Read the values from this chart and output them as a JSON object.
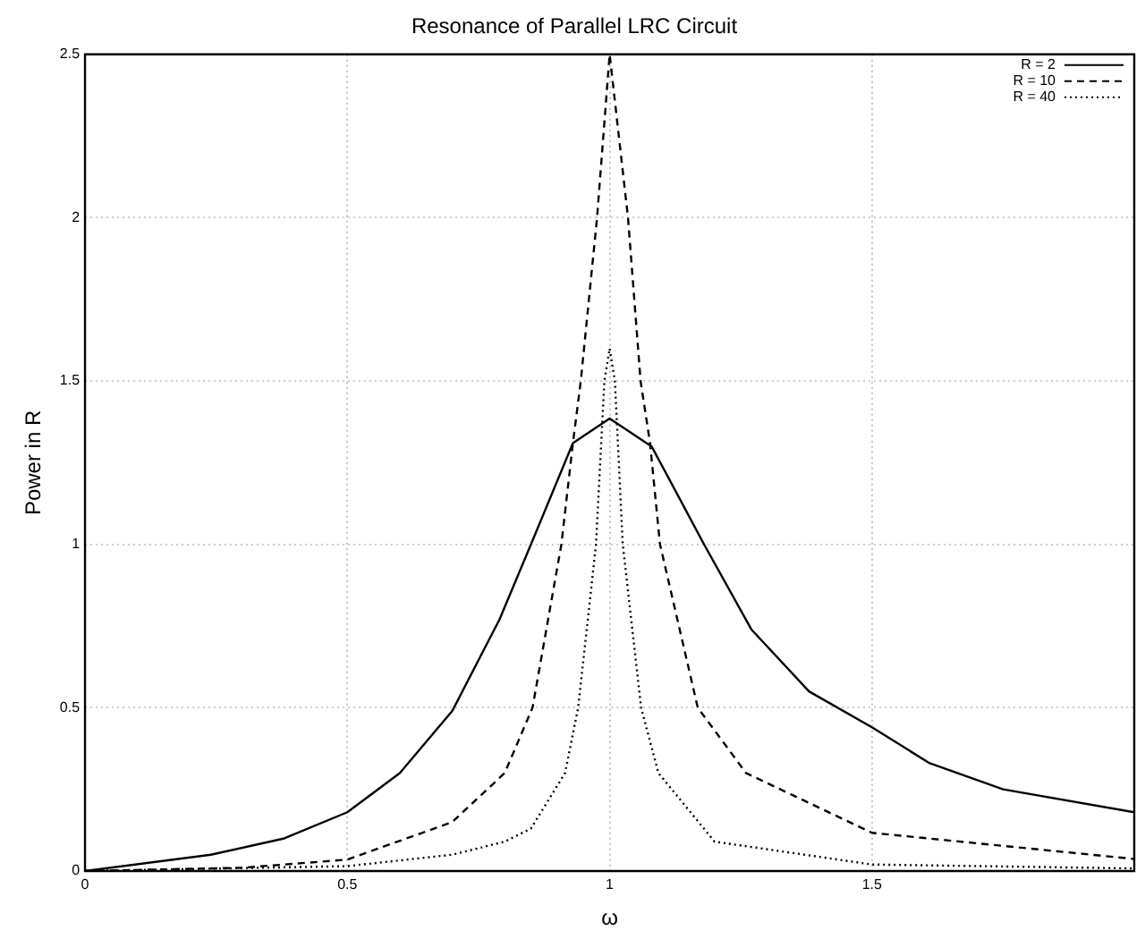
{
  "chart_data": {
    "type": "line",
    "title": "Resonance of Parallel LRC Circuit",
    "xlabel": "ω",
    "ylabel": "Power in R",
    "xlim": [
      0,
      2
    ],
    "xticks": [
      0,
      0.5,
      1,
      1.5
    ],
    "ylim": [
      0,
      2.5
    ],
    "yticks": [
      0,
      0.5,
      1,
      1.5,
      2,
      2.5
    ],
    "grid": true,
    "legend": "top right",
    "marker": "none",
    "series": [
      {
        "name": "R = 2",
        "color": "#000000",
        "line_style": "solid",
        "x": [
          0,
          0.24,
          0.38,
          0.5,
          0.6,
          0.7,
          0.79,
          0.85,
          0.93,
          1,
          1.08,
          1.18,
          1.27,
          1.38,
          1.5,
          1.61,
          1.75,
          2
        ],
        "values": [
          0,
          0.05,
          0.1,
          0.18,
          0.3,
          0.49,
          0.77,
          1,
          1.31,
          1.385,
          1.3,
          1,
          0.74,
          0.55,
          0.44,
          0.33,
          0.25,
          0.18
        ]
      },
      {
        "name": "R = 10",
        "color": "#000000",
        "line_style": "dashed",
        "x": [
          0,
          0.3,
          0.5,
          0.7,
          0.8,
          0.853,
          0.908,
          0.93,
          0.945,
          0.976,
          1,
          1.035,
          1.059,
          1.077,
          1.096,
          1.168,
          1.26,
          1.5,
          2
        ],
        "values": [
          0,
          0.01,
          0.035,
          0.15,
          0.3,
          0.5,
          1,
          1.31,
          1.5,
          2,
          2.5,
          2,
          1.5,
          1.31,
          1,
          0.5,
          0.3,
          0.117,
          0.037
        ]
      },
      {
        "name": "R = 40",
        "color": "#000000",
        "line_style": "dotted",
        "x": [
          0,
          0.5,
          0.7,
          0.8,
          0.85,
          0.915,
          0.94,
          0.974,
          0.99,
          1,
          1.01,
          1.025,
          1.06,
          1.093,
          1.2,
          1.5,
          2
        ],
        "values": [
          0,
          0.015,
          0.05,
          0.09,
          0.13,
          0.3,
          0.5,
          1,
          1.5,
          1.6,
          1.5,
          1,
          0.5,
          0.3,
          0.09,
          0.02,
          0.008
        ]
      }
    ]
  }
}
